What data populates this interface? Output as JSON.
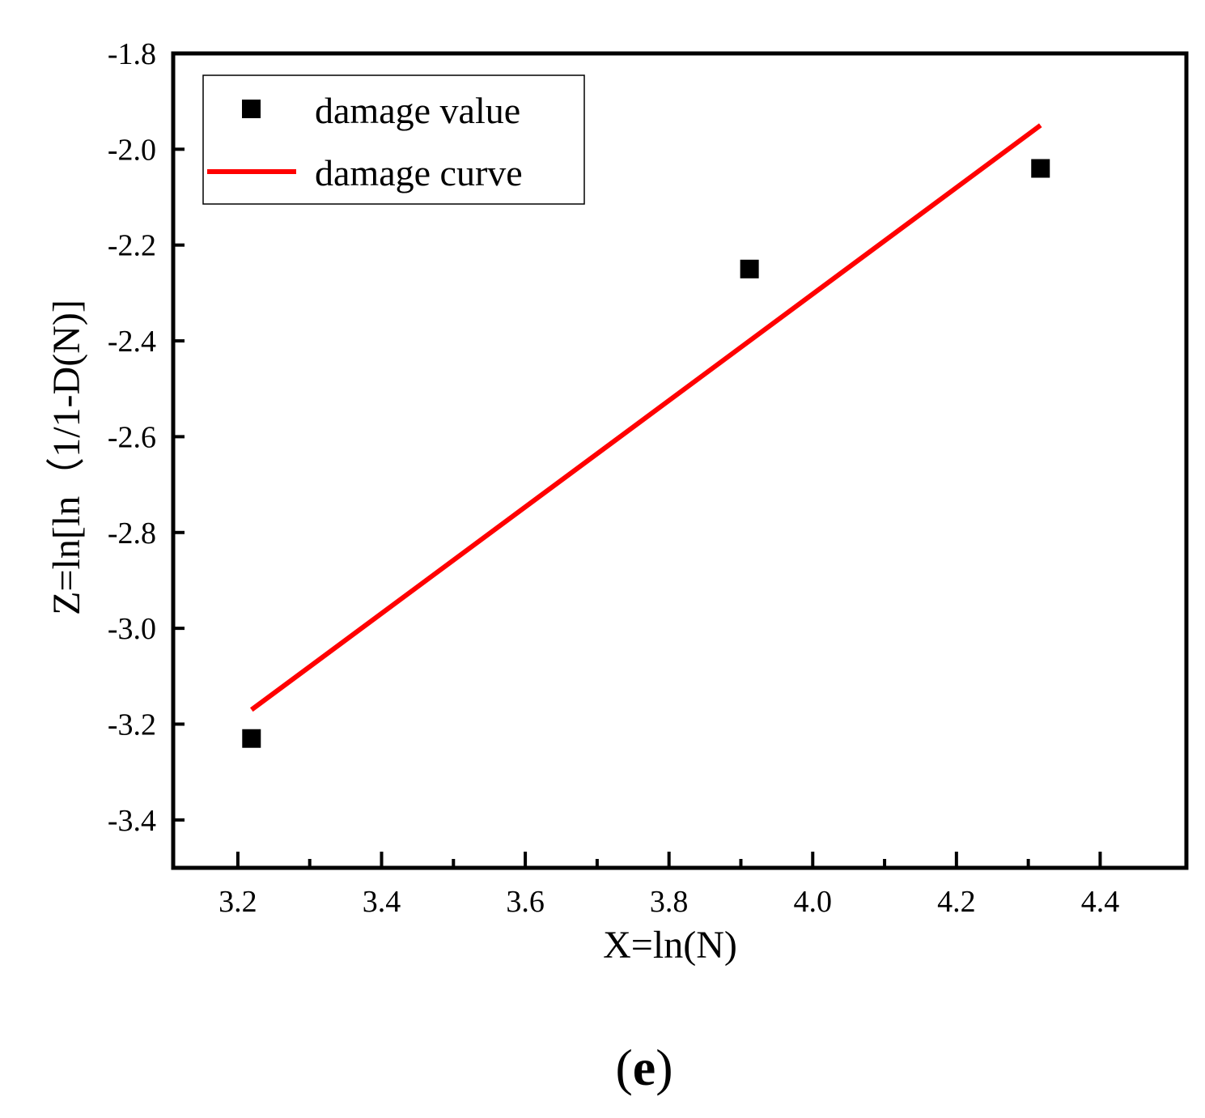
{
  "chart_data": {
    "type": "scatter",
    "title": "",
    "xlabel": "X=ln(N)",
    "ylabel": "Z=ln[ln（1/1-D(N)]",
    "xlim": [
      3.11,
      4.52
    ],
    "ylim": [
      -3.5,
      -1.8
    ],
    "xticks": [
      3.2,
      3.4,
      3.6,
      3.8,
      4.0,
      4.2,
      4.4
    ],
    "xtick_labels": [
      "3.2",
      "3.4",
      "3.6",
      "3.8",
      "4.0",
      "4.2",
      "4.4"
    ],
    "xminor_ticks": [
      3.3,
      3.5,
      3.7,
      3.9,
      4.1,
      4.3
    ],
    "yticks": [
      -3.4,
      -3.2,
      -3.0,
      -2.8,
      -2.6,
      -2.4,
      -2.2,
      -2.0,
      -1.8
    ],
    "ytick_labels": [
      "-3.4",
      "-3.2",
      "-3.0",
      "-2.8",
      "-2.6",
      "-2.4",
      "-2.2",
      "-2.0",
      "-1.8"
    ],
    "grid": false,
    "legend_position": "top-left",
    "series": [
      {
        "name": "damage value",
        "kind": "scatter",
        "marker": "square",
        "color": "#000000",
        "x": [
          3.219,
          3.912,
          4.317
        ],
        "y": [
          -3.23,
          -2.25,
          -2.04
        ]
      },
      {
        "name": "damage curve",
        "kind": "line",
        "color": "#ff0000",
        "x": [
          3.219,
          4.317
        ],
        "y": [
          -3.17,
          -1.95
        ]
      }
    ],
    "panel_label": {
      "open": "(",
      "letter": "e",
      "close": ")"
    }
  }
}
